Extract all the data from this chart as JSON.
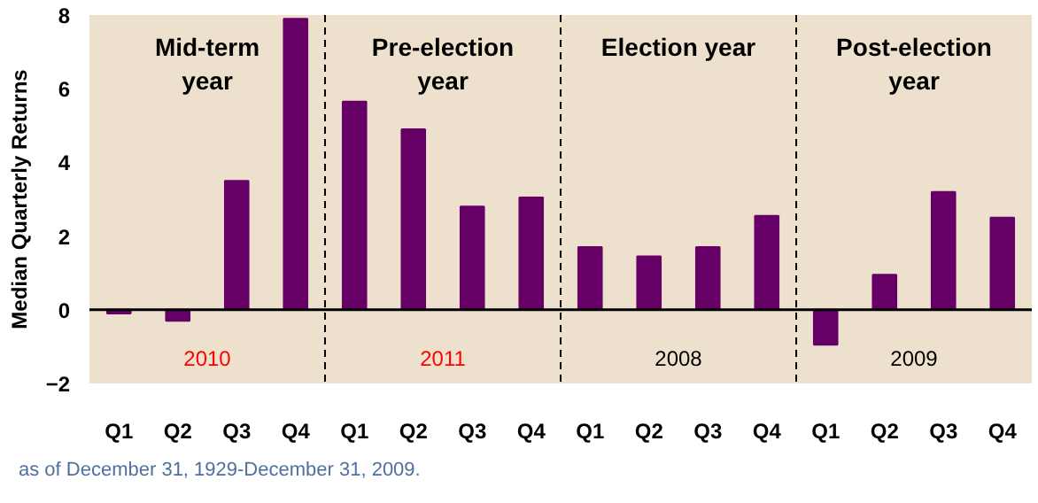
{
  "chart_data": {
    "type": "bar",
    "ylabel": "Median Quarterly Returns",
    "categories": [
      "Q1",
      "Q2",
      "Q3",
      "Q4",
      "Q1",
      "Q2",
      "Q3",
      "Q4",
      "Q1",
      "Q2",
      "Q3",
      "Q4",
      "Q1",
      "Q2",
      "Q3",
      "Q4"
    ],
    "values": [
      -0.1,
      -0.3,
      3.5,
      7.9,
      5.65,
      4.9,
      2.8,
      3.05,
      1.7,
      1.45,
      1.7,
      2.55,
      -0.95,
      0.95,
      3.2,
      2.5
    ],
    "color": "#660066",
    "ylim": [
      -2,
      8
    ],
    "yticks": [
      -2,
      0,
      2,
      4,
      6,
      8
    ],
    "grid": false,
    "annotations": [
      "Mid-term\nyear",
      "Pre-election\nyear",
      "Election year",
      "Post-election\nyear",
      "2010",
      "2011",
      "2008",
      "2009",
      "as of December 31, 1929-December 31, 2009."
    ]
  }
}
